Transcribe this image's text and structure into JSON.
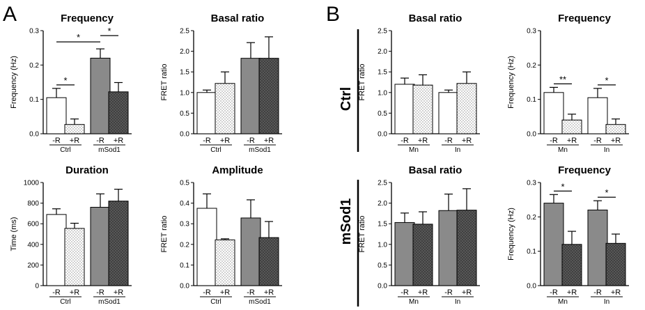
{
  "panel_labels": [
    "A",
    "B"
  ],
  "row_labels": [
    "Ctrl",
    "mSod1"
  ],
  "colors": {
    "white": "#ffffff",
    "light": "#e0e0e0",
    "gray": "#8a8a8a",
    "darkgray": "#5e5e5e",
    "axis": "#000000"
  },
  "chart_data": [
    {
      "type": "bar",
      "title": "Frequency",
      "ylabel": "Frequency (Hz)",
      "ylim": [
        0,
        0.3
      ],
      "yticks": [
        "0.0",
        "0.1",
        "0.2",
        "0.3"
      ],
      "categories": [
        "-R",
        "+R",
        "-R",
        "+R"
      ],
      "groups": [
        "Ctrl",
        "mSod1"
      ],
      "values": [
        0.105,
        0.027,
        0.22,
        0.122
      ],
      "errors": [
        0.027,
        0.016,
        0.027,
        0.027
      ],
      "fills": [
        "white",
        "light",
        "gray",
        "darkgray"
      ],
      "significance": [
        {
          "label": "*",
          "from": 0,
          "to": 1
        },
        {
          "label": "*",
          "from": 0,
          "to": 2
        },
        {
          "label": "*",
          "from": 2,
          "to": 3
        }
      ]
    },
    {
      "type": "bar",
      "title": "Basal ratio",
      "ylabel": "FRET ratio",
      "ylim": [
        0,
        2.5
      ],
      "yticks": [
        "0.0",
        "0.5",
        "1.0",
        "1.5",
        "2.0",
        "2.5"
      ],
      "categories": [
        "-R",
        "+R",
        "-R",
        "+R"
      ],
      "groups": [
        "Ctrl",
        "mSod1"
      ],
      "values": [
        1.0,
        1.22,
        1.83,
        1.83
      ],
      "errors": [
        0.06,
        0.28,
        0.38,
        0.52
      ],
      "fills": [
        "white",
        "light",
        "gray",
        "darkgray"
      ],
      "significance": []
    },
    {
      "type": "bar",
      "title": "Duration",
      "ylabel": "Time (ms)",
      "ylim": [
        0,
        1000
      ],
      "yticks": [
        "0",
        "200",
        "400",
        "600",
        "800",
        "1000"
      ],
      "categories": [
        "-R",
        "+R",
        "-R",
        "+R"
      ],
      "groups": [
        "Ctrl",
        "mSod1"
      ],
      "values": [
        690,
        555,
        760,
        820
      ],
      "errors": [
        55,
        50,
        130,
        115
      ],
      "fills": [
        "white",
        "light",
        "gray",
        "darkgray"
      ],
      "significance": []
    },
    {
      "type": "bar",
      "title": "Amplitude",
      "ylabel": "FRET ratio",
      "ylim": [
        0,
        0.5
      ],
      "yticks": [
        "0.0",
        "0.1",
        "0.2",
        "0.3",
        "0.4",
        "0.5"
      ],
      "categories": [
        "-R",
        "+R",
        "-R",
        "+R"
      ],
      "groups": [
        "Ctrl",
        "mSod1"
      ],
      "values": [
        0.375,
        0.222,
        0.328,
        0.233
      ],
      "errors": [
        0.07,
        0.005,
        0.088,
        0.078
      ],
      "fills": [
        "white",
        "light",
        "gray",
        "darkgray"
      ],
      "significance": []
    },
    {
      "type": "bar",
      "title": "Basal ratio",
      "ylabel": "FRET ratio",
      "ylim": [
        0,
        2.5
      ],
      "yticks": [
        "0.0",
        "0.5",
        "1.0",
        "1.5",
        "2.0",
        "2.5"
      ],
      "categories": [
        "-R",
        "+R",
        "-R",
        "+R"
      ],
      "groups": [
        "Mn",
        "In"
      ],
      "values": [
        1.2,
        1.18,
        1.0,
        1.22
      ],
      "errors": [
        0.15,
        0.25,
        0.06,
        0.28
      ],
      "fills": [
        "white",
        "light",
        "white",
        "light"
      ],
      "significance": []
    },
    {
      "type": "bar",
      "title": "Frequency",
      "ylabel": "Frequency (Hz)",
      "ylim": [
        0,
        0.3
      ],
      "yticks": [
        "0.0",
        "0.1",
        "0.2",
        "0.3"
      ],
      "categories": [
        "-R",
        "+R",
        "-R",
        "+R"
      ],
      "groups": [
        "Mn",
        "In"
      ],
      "values": [
        0.12,
        0.04,
        0.105,
        0.027
      ],
      "errors": [
        0.015,
        0.017,
        0.027,
        0.016
      ],
      "fills": [
        "white",
        "light",
        "white",
        "light"
      ],
      "significance": [
        {
          "label": "**",
          "from": 0,
          "to": 1
        },
        {
          "label": "*",
          "from": 2,
          "to": 3
        }
      ]
    },
    {
      "type": "bar",
      "title": "Basal ratio",
      "ylabel": "FRET ratio",
      "ylim": [
        0,
        2.5
      ],
      "yticks": [
        "0.0",
        "0.5",
        "1.0",
        "1.5",
        "2.0",
        "2.5"
      ],
      "categories": [
        "-R",
        "+R",
        "-R",
        "+R"
      ],
      "groups": [
        "Mn",
        "In"
      ],
      "values": [
        1.53,
        1.49,
        1.82,
        1.83
      ],
      "errors": [
        0.23,
        0.3,
        0.4,
        0.52
      ],
      "fills": [
        "gray",
        "darkgray",
        "gray",
        "darkgray"
      ],
      "significance": []
    },
    {
      "type": "bar",
      "title": "Frequency",
      "ylabel": "Frequency (Hz)",
      "ylim": [
        0,
        0.3
      ],
      "yticks": [
        "0.0",
        "0.1",
        "0.2",
        "0.3"
      ],
      "categories": [
        "-R",
        "+R",
        "-R",
        "+R"
      ],
      "groups": [
        "Mn",
        "In"
      ],
      "values": [
        0.24,
        0.12,
        0.22,
        0.123
      ],
      "errors": [
        0.025,
        0.038,
        0.027,
        0.027
      ],
      "fills": [
        "gray",
        "darkgray",
        "gray",
        "darkgray"
      ],
      "significance": [
        {
          "label": "*",
          "from": 0,
          "to": 1
        },
        {
          "label": "*",
          "from": 2,
          "to": 3
        }
      ]
    }
  ]
}
